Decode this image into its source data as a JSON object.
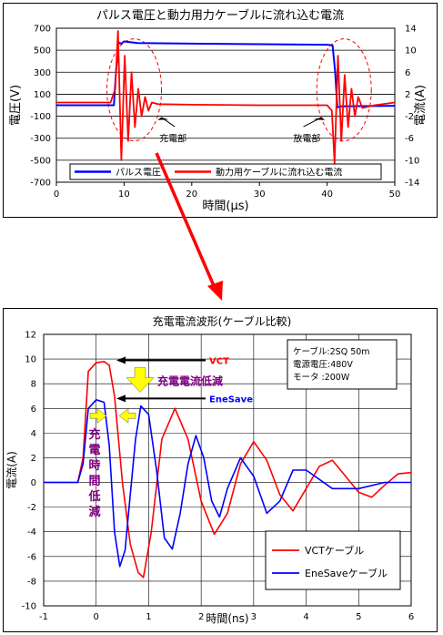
{
  "chart_data": [
    {
      "type": "line",
      "title": "パルス電圧と動力用力ケーブルに流れ込む電流",
      "xlabel": "時間(μs)",
      "ylabel_left": "電圧(V)",
      "ylabel_right": "電流(A)",
      "xlim": [
        0,
        50
      ],
      "ylim_left": [
        -700,
        700
      ],
      "ylim_right": [
        -14,
        14
      ],
      "xticks": [
        "0",
        "10",
        "20",
        "30",
        "40",
        "50"
      ],
      "yticks_left": [
        "700",
        "500",
        "300",
        "100",
        "-100",
        "-300",
        "-500",
        "-700"
      ],
      "yticks_right": [
        "14",
        "10",
        "6",
        "2",
        "-2",
        "-6",
        "-10",
        "-14"
      ],
      "grid": true,
      "legend_position": "bottom",
      "annotations": {
        "charge": "充電部",
        "discharge": "放電部"
      },
      "series": [
        {
          "name": "パルス電圧",
          "axis": "left",
          "color": "#0000ff",
          "x": [
            0,
            8.5,
            8.8,
            9.2,
            9.6,
            10,
            12,
            20,
            30,
            40,
            40.8,
            41.2,
            41.5,
            42,
            45,
            50
          ],
          "y": [
            0,
            0,
            300,
            570,
            560,
            580,
            565,
            560,
            555,
            550,
            545,
            300,
            -20,
            -10,
            -8,
            -5
          ]
        },
        {
          "name": "動力用ケーブルに流れ込む電流",
          "axis": "right",
          "color": "#ff0000",
          "x": [
            0,
            8,
            8.7,
            9.1,
            9.6,
            10.1,
            10.6,
            11.1,
            11.6,
            12.1,
            12.6,
            13.1,
            13.6,
            14.1,
            15,
            20,
            30,
            40,
            40.7,
            41.1,
            41.6,
            42.1,
            42.6,
            43.1,
            43.6,
            44.1,
            44.6,
            45.2,
            47,
            50
          ],
          "y": [
            0.5,
            0.5,
            3,
            13.5,
            -10,
            9,
            -6.5,
            6,
            -4,
            3,
            -2,
            1.5,
            -1,
            0.5,
            0.2,
            0.1,
            0,
            0,
            -1,
            -10.5,
            9,
            -6.5,
            5.5,
            -4,
            3,
            -2,
            1.5,
            -0.5,
            0,
            0.5
          ]
        }
      ]
    },
    {
      "type": "line",
      "title": "充電電流波形(ケーブル比較)",
      "xlabel": "時間(ns)",
      "ylabel": "電流(A)",
      "xlim": [
        -1,
        6
      ],
      "ylim": [
        -10,
        12
      ],
      "xticks": [
        "-1",
        "0",
        "1",
        "2",
        "3",
        "4",
        "5",
        "6"
      ],
      "yticks": [
        "12",
        "10",
        "8",
        "6",
        "4",
        "2",
        "0",
        "-2",
        "-4",
        "-6",
        "-8",
        "-10"
      ],
      "grid": true,
      "legend_position": "bottom-right",
      "annotations": {
        "vct_label": "VCT",
        "enesave_label": "EneSave",
        "current_reduction": "充電電流低減",
        "time_reduction": "充電時間低減",
        "spec_lines": [
          "ケーブル:2SQ 50m",
          "電源電圧:480V",
          "モータ :200W"
        ]
      },
      "series": [
        {
          "name": "VCTケーブル",
          "color": "#ff0000",
          "x": [
            -1,
            -0.35,
            -0.25,
            -0.15,
            0,
            0.15,
            0.25,
            0.35,
            0.5,
            0.65,
            0.8,
            0.9,
            1.05,
            1.25,
            1.5,
            1.75,
            2.0,
            2.25,
            2.5,
            2.75,
            3.0,
            3.25,
            3.5,
            3.75,
            4.0,
            4.25,
            4.5,
            4.75,
            5.0,
            5.25,
            5.5,
            5.75,
            6.0
          ],
          "y": [
            0,
            0,
            2,
            9,
            9.7,
            9.8,
            9.5,
            7,
            0,
            -5,
            -7.3,
            -7.7,
            -4,
            3.5,
            6,
            3.5,
            -1.5,
            -4.2,
            -2.5,
            1.5,
            3.3,
            1.8,
            -1,
            -2.3,
            -0.5,
            1.3,
            1.8,
            0.5,
            -0.8,
            -1.2,
            -0.2,
            0.7,
            0.8
          ]
        },
        {
          "name": "EneSaveケーブル",
          "color": "#0000ff",
          "x": [
            -1,
            -0.35,
            -0.25,
            -0.15,
            0,
            0.15,
            0.25,
            0.35,
            0.45,
            0.55,
            0.65,
            0.75,
            0.85,
            1.0,
            1.15,
            1.3,
            1.45,
            1.6,
            1.75,
            1.9,
            2.05,
            2.2,
            2.35,
            2.5,
            2.75,
            3.0,
            3.25,
            3.5,
            3.75,
            4.0,
            4.5,
            5.0,
            5.5,
            6.0
          ],
          "y": [
            0,
            0,
            1.5,
            6,
            6.7,
            6.5,
            3,
            -4,
            -6.8,
            -5.5,
            -1,
            3.5,
            6.2,
            5.5,
            1,
            -4.5,
            -5.4,
            -2.5,
            1.5,
            3.8,
            2,
            -1.5,
            -2.8,
            -0.5,
            2,
            0.5,
            -2.5,
            -1.5,
            1,
            1,
            -0.5,
            -0.5,
            0,
            0
          ]
        }
      ]
    }
  ]
}
